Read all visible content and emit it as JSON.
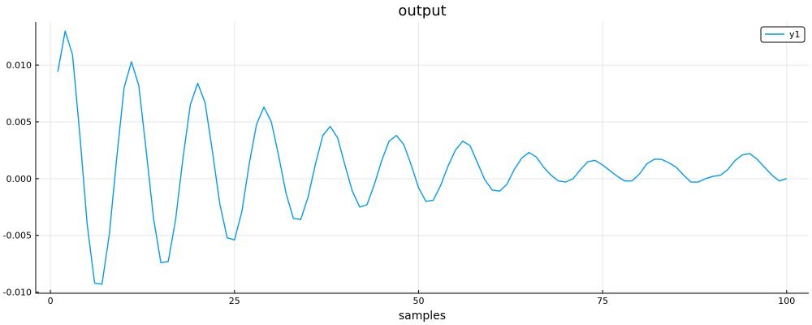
{
  "chart_data": {
    "type": "line",
    "title": "output",
    "xlabel": "samples",
    "ylabel": "",
    "xlim": [
      -2,
      103
    ],
    "ylim": [
      -0.0101,
      0.0138
    ],
    "xticks": [
      0,
      25,
      50,
      75,
      100
    ],
    "yticks": [
      -0.01,
      -0.005,
      0.0,
      0.005,
      0.01
    ],
    "xtick_labels": [
      "0",
      "25",
      "50",
      "75",
      "100"
    ],
    "ytick_labels": [
      "-0.010",
      "-0.005",
      "0.000",
      "0.005",
      "0.010"
    ],
    "grid": true,
    "legend": {
      "position": "top-right",
      "entries": [
        "y1"
      ]
    },
    "series": [
      {
        "name": "y1",
        "color": "#009af9",
        "x": [
          1,
          2,
          3,
          4,
          5,
          6,
          7,
          8,
          9,
          10,
          11,
          12,
          13,
          14,
          15,
          16,
          17,
          18,
          19,
          20,
          21,
          22,
          23,
          24,
          25,
          26,
          27,
          28,
          29,
          30,
          31,
          32,
          33,
          34,
          35,
          36,
          37,
          38,
          39,
          40,
          41,
          42,
          43,
          44,
          45,
          46,
          47,
          48,
          49,
          50,
          51,
          52,
          53,
          54,
          55,
          56,
          57,
          58,
          59,
          60,
          61,
          62,
          63,
          64,
          65,
          66,
          67,
          68,
          69,
          70,
          71,
          72,
          73,
          74,
          75,
          76,
          77,
          78,
          79,
          80,
          81,
          82,
          83,
          84,
          85,
          86,
          87,
          88,
          89,
          90,
          91,
          92,
          93,
          94,
          95,
          96,
          97,
          98,
          99,
          100
        ],
        "y": [
          0.0094,
          0.013,
          0.0109,
          0.0038,
          -0.0041,
          -0.0092,
          -0.0093,
          -0.0049,
          0.0018,
          0.008,
          0.0103,
          0.0082,
          0.0025,
          -0.0035,
          -0.0074,
          -0.0073,
          -0.0036,
          0.0018,
          0.0065,
          0.0084,
          0.0067,
          0.0024,
          -0.0022,
          -0.0052,
          -0.0054,
          -0.0029,
          0.0013,
          0.0048,
          0.0063,
          0.005,
          0.002,
          -0.0013,
          -0.0035,
          -0.0036,
          -0.0016,
          0.0013,
          0.0038,
          0.0046,
          0.0036,
          0.0012,
          -0.0011,
          -0.0025,
          -0.0023,
          -0.0005,
          0.0016,
          0.0033,
          0.0038,
          0.003,
          0.0012,
          -0.0008,
          -0.002,
          -0.0019,
          -0.0006,
          0.0011,
          0.0025,
          0.0033,
          0.0029,
          0.0014,
          -0.0001,
          -0.001,
          -0.0011,
          -0.0005,
          0.0008,
          0.0018,
          0.0023,
          0.0019,
          0.001,
          0.0003,
          -0.0002,
          -0.0003,
          0.0,
          0.0008,
          0.0015,
          0.0016,
          0.0012,
          0.0007,
          0.0002,
          -0.0002,
          -0.0002,
          0.0004,
          0.0013,
          0.0017,
          0.0017,
          0.0014,
          0.001,
          0.0003,
          -0.0003,
          -0.0003,
          0.0,
          0.0002,
          0.0003,
          0.0008,
          0.0016,
          0.0021,
          0.0022,
          0.0017,
          0.001,
          0.0003,
          -0.0002,
          0.0
        ]
      }
    ]
  }
}
